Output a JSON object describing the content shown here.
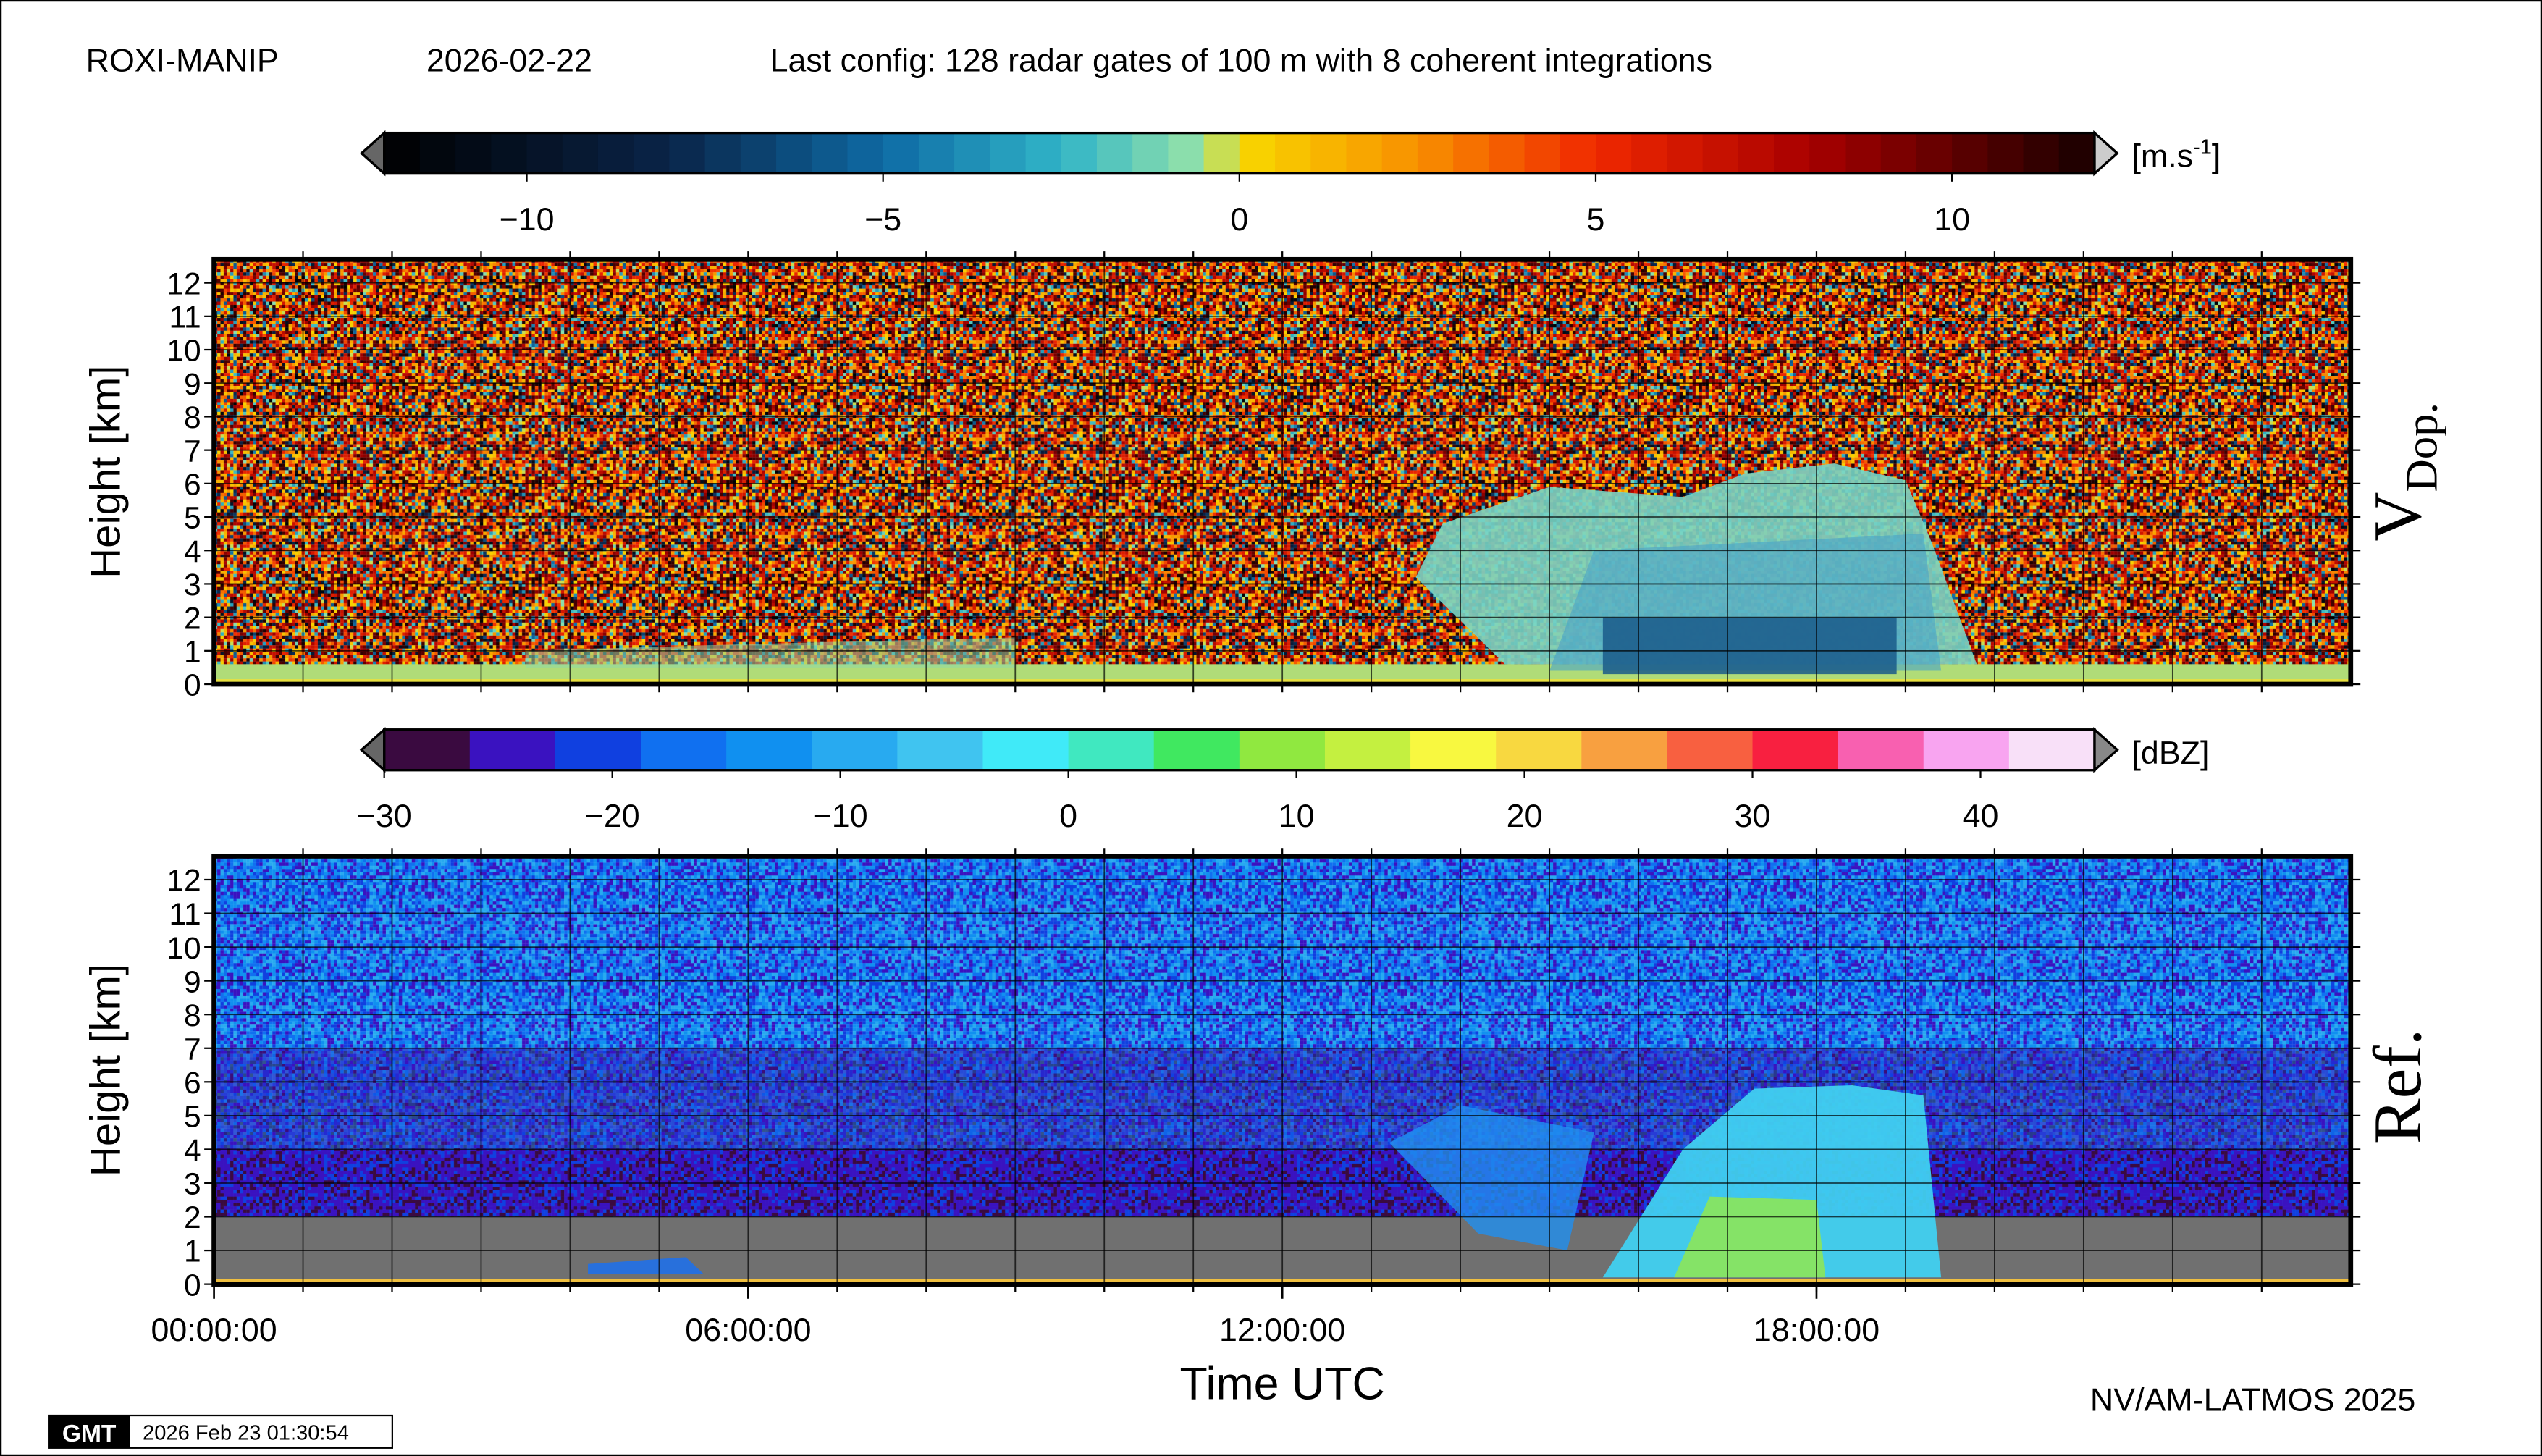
{
  "header": {
    "station": "ROXI-MANIP",
    "date": "2026-02-22",
    "config": "Last config: 128 radar gates of 100 m with 8 coherent integrations"
  },
  "chart_data": [
    {
      "type": "heatmap",
      "label": "V",
      "label_sub": "Dop.",
      "ylabel": "Height [km]",
      "xlim": [
        0,
        24
      ],
      "ylim": [
        0,
        12.7
      ],
      "yticks": [
        0,
        1,
        2,
        3,
        4,
        5,
        6,
        7,
        8,
        9,
        10,
        11,
        12
      ],
      "x_minor_ticks": [
        1,
        2,
        3,
        4,
        5,
        6,
        7,
        8,
        9,
        10,
        11,
        12,
        13,
        14,
        15,
        16,
        17,
        18,
        19,
        20,
        21,
        22,
        23
      ],
      "grid": true,
      "colorbar": {
        "lim": [
          -12,
          12
        ],
        "step": 0.5,
        "unit": "[m.s",
        "unit_sup": "-1",
        "unit_end": "]",
        "ticks": [
          {
            "value": -10,
            "label": "−10"
          },
          {
            "value": -5,
            "label": "−5"
          },
          0,
          5,
          10
        ],
        "color_stops": [
          [
            -12,
            "#000000"
          ],
          [
            -8,
            "#0a2448"
          ],
          [
            -5,
            "#0e6aa4"
          ],
          [
            -2.5,
            "#30b4c8"
          ],
          [
            -0.5,
            "#98e4a8"
          ],
          [
            0,
            "#f8d800"
          ],
          [
            2.5,
            "#f89000"
          ],
          [
            5,
            "#f02800"
          ],
          [
            8,
            "#a80000"
          ],
          [
            12,
            "#180000"
          ]
        ]
      }
    },
    {
      "type": "heatmap",
      "label": "Ref.",
      "ylabel": "Height [km]",
      "xlabel": "Time UTC",
      "xlim": [
        0,
        24
      ],
      "ylim": [
        0,
        12.7
      ],
      "yticks": [
        0,
        1,
        2,
        3,
        4,
        5,
        6,
        7,
        8,
        9,
        10,
        11,
        12
      ],
      "xticks": [
        {
          "value": 0,
          "label": "00:00:00"
        },
        {
          "value": 6,
          "label": "06:00:00"
        },
        {
          "value": 12,
          "label": "12:00:00"
        },
        {
          "value": 18,
          "label": "18:00:00"
        }
      ],
      "x_minor_ticks": [
        1,
        2,
        3,
        4,
        5,
        6,
        7,
        8,
        9,
        10,
        11,
        12,
        13,
        14,
        15,
        16,
        17,
        18,
        19,
        20,
        21,
        22,
        23
      ],
      "grid": true,
      "colorbar": {
        "lim": [
          -30,
          45
        ],
        "step": 3.75,
        "unit": "[dBZ]",
        "ticks": [
          {
            "value": -30,
            "label": "−30"
          },
          {
            "value": -20,
            "label": "−20"
          },
          {
            "value": -10,
            "label": "−10"
          },
          0,
          10,
          20,
          30,
          40
        ],
        "colors": [
          "#3a0a40",
          "#3a12c0",
          "#1040e0",
          "#1070f0",
          "#1090f0",
          "#28aaf0",
          "#40c4f0",
          "#40eaf8",
          "#40e8c0",
          "#40e860",
          "#90e840",
          "#c4f040",
          "#f8f840",
          "#f8d840",
          "#f8a040",
          "#f86040",
          "#f82040",
          "#f860b0",
          "#f8a4f0",
          "#f8e0f8"
        ]
      }
    }
  ],
  "footer": {
    "credit": "NV/AM-LATMOS 2025",
    "logo": "GMT",
    "timestamp": "2026 Feb 23 01:30:54"
  }
}
